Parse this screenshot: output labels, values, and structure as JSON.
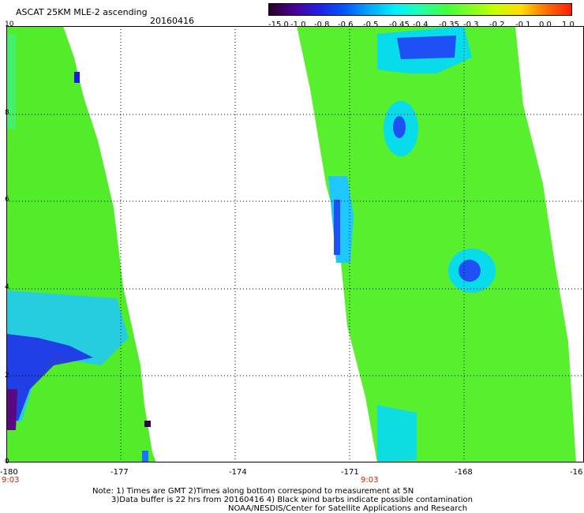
{
  "header": {
    "title": "ASCAT 25KM MLE-2 ascending",
    "date": "20160416"
  },
  "colorbar": {
    "labels": [
      "-15.0",
      "-1.0",
      "-0.8",
      "-0.6",
      "-0.5",
      "-0.45",
      "-0.4",
      "-0.35",
      "-0.3",
      "-0.2",
      "-0.1",
      "0.0",
      "1.0"
    ],
    "colors": [
      "#2a0026",
      "#4a0096",
      "#2020e6",
      "#0058ff",
      "#00aaff",
      "#00f0ff",
      "#20ffb0",
      "#40ff40",
      "#80ff20",
      "#c8ff00",
      "#ffdc00",
      "#ff7000",
      "#ff2000"
    ]
  },
  "axes": {
    "x_ticks": [
      "-180",
      "-177",
      "-174",
      "-171",
      "-168",
      "-16"
    ],
    "y_ticks": [
      "10",
      "8",
      "6",
      "4",
      "2",
      "0"
    ],
    "time_labels": [
      "9:03",
      "9:03"
    ]
  },
  "swaths": {
    "left_color": "#52ec2a",
    "right_color": "#58f02e"
  },
  "notes": {
    "line1": "Note: 1) Times are GMT 2)Times along bottom correspond to measurement at 5N",
    "line2": "3)Data buffer is 22 hrs from 20160416 4) Black wind barbs indicate possible contamination",
    "line3": "NOAA/NESDIS/Center for Satellite Applications and Research"
  }
}
